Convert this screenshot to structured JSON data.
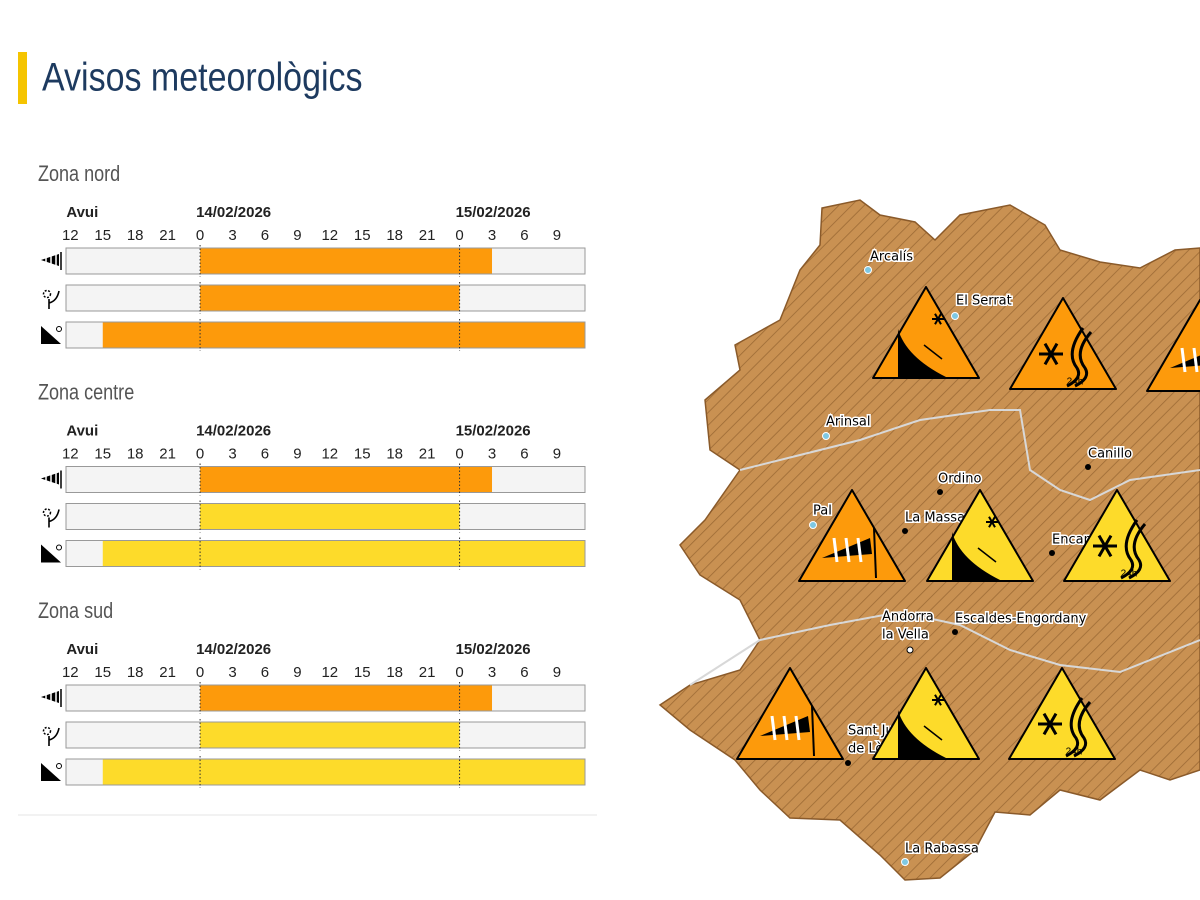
{
  "header": {
    "title": "Avisos meteorològics"
  },
  "timeline": {
    "xlim": [
      11.6,
      59.6
    ],
    "ticks": [
      {
        "value": 12,
        "label": "12"
      },
      {
        "value": 15,
        "label": "15"
      },
      {
        "value": 18,
        "label": "18"
      },
      {
        "value": 21,
        "label": "21"
      },
      {
        "value": 24,
        "label": "0"
      },
      {
        "value": 27,
        "label": "3"
      },
      {
        "value": 30,
        "label": "6"
      },
      {
        "value": 33,
        "label": "9"
      },
      {
        "value": 36,
        "label": "12"
      },
      {
        "value": 39,
        "label": "15"
      },
      {
        "value": 42,
        "label": "18"
      },
      {
        "value": 45,
        "label": "21"
      },
      {
        "value": 48,
        "label": "0"
      },
      {
        "value": 51,
        "label": "3"
      },
      {
        "value": 54,
        "label": "6"
      },
      {
        "value": 57,
        "label": "9"
      }
    ],
    "days": [
      {
        "value": 12,
        "label": "Avui"
      },
      {
        "value": 24,
        "label": "14/02/2026"
      },
      {
        "value": 48,
        "label": "15/02/2026"
      }
    ],
    "day_boundaries": [
      24,
      48
    ]
  },
  "zones": [
    {
      "name": "Zona nord",
      "rows": [
        {
          "icon": "wind",
          "segments": [
            {
              "from": 24,
              "to": 51,
              "color": "#fd9a0b"
            }
          ]
        },
        {
          "icon": "snow",
          "segments": [
            {
              "from": 24,
              "to": 48,
              "color": "#fd9a0b"
            }
          ]
        },
        {
          "icon": "avalanche",
          "segments": [
            {
              "from": 15,
              "to": 59.6,
              "color": "#fd9a0b"
            }
          ]
        }
      ]
    },
    {
      "name": "Zona centre",
      "rows": [
        {
          "icon": "wind",
          "segments": [
            {
              "from": 24,
              "to": 51,
              "color": "#fd9a0b"
            }
          ]
        },
        {
          "icon": "snow",
          "segments": [
            {
              "from": 24,
              "to": 48,
              "color": "#fddb2a"
            }
          ]
        },
        {
          "icon": "avalanche",
          "segments": [
            {
              "from": 15,
              "to": 59.6,
              "color": "#fddb2a"
            }
          ]
        }
      ]
    },
    {
      "name": "Zona sud",
      "rows": [
        {
          "icon": "wind",
          "segments": [
            {
              "from": 24,
              "to": 51,
              "color": "#fd9a0b"
            }
          ]
        },
        {
          "icon": "snow",
          "segments": [
            {
              "from": 24,
              "to": 48,
              "color": "#fddb2a"
            }
          ]
        },
        {
          "icon": "avalanche",
          "segments": [
            {
              "from": 15,
              "to": 59.6,
              "color": "#fddb2a"
            }
          ]
        }
      ]
    }
  ],
  "map": {
    "places": [
      "Arcalís",
      "El Serrat",
      "Arinsal",
      "Canillo",
      "Ordino",
      "Pal",
      "La Massana",
      "Encamp",
      "Andorra",
      "la Vella",
      "Escaldes-Engordany",
      "Sant Julià",
      "de Lòria",
      "La Rabassa"
    ],
    "icon_label": "24h"
  }
}
